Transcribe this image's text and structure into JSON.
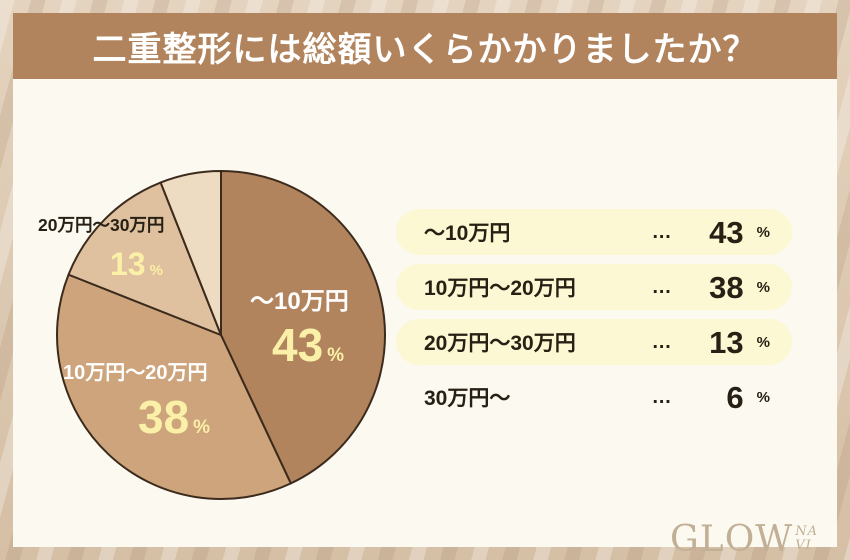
{
  "header": {
    "title": "二重整形には総額いくらかかりましたか？"
  },
  "chart_data": {
    "type": "pie",
    "title": "二重整形には総額いくらかかりましたか？",
    "categories": [
      "〜10万円",
      "10万円〜20万円",
      "20万円〜30万円",
      "30万円〜"
    ],
    "values": [
      43,
      38,
      13,
      6
    ],
    "unit": "%",
    "colors": [
      "#b1845d",
      "#cda47b",
      "#dfc1a0",
      "#eedcc2"
    ],
    "outline_color": "#3c2b1d",
    "start_angle_deg": 0,
    "direction": "clockwise",
    "legend_position": "right"
  },
  "pie_labels": {
    "slice1": {
      "label": "〜10万円",
      "value": "43",
      "unit": "%"
    },
    "slice2": {
      "label": "10万円〜20万円",
      "value": "38",
      "unit": "%"
    },
    "slice3": {
      "label": "20万円〜30万円",
      "value": "13",
      "unit": "%"
    }
  },
  "legend": {
    "rows": [
      {
        "label": "〜10万円",
        "dots": "…",
        "value": "43",
        "unit": "%"
      },
      {
        "label": "10万円〜20万円",
        "dots": "…",
        "value": "38",
        "unit": "%"
      },
      {
        "label": "20万円〜30万円",
        "dots": "…",
        "value": "13",
        "unit": "%"
      },
      {
        "label": "30万円〜",
        "dots": "…",
        "value": "6",
        "unit": "%"
      }
    ]
  },
  "brand": {
    "main": "GLOW",
    "sub_top": "NA",
    "sub_bottom": "VI"
  },
  "colors": {
    "header_bg": "#b1845d",
    "legend_row_bg": "#fcf8d3",
    "value_yellow": "#fbf0a8",
    "text_dark": "#272015",
    "frame": "#d9c5ae",
    "inner_bg": "#fcf9f1"
  }
}
